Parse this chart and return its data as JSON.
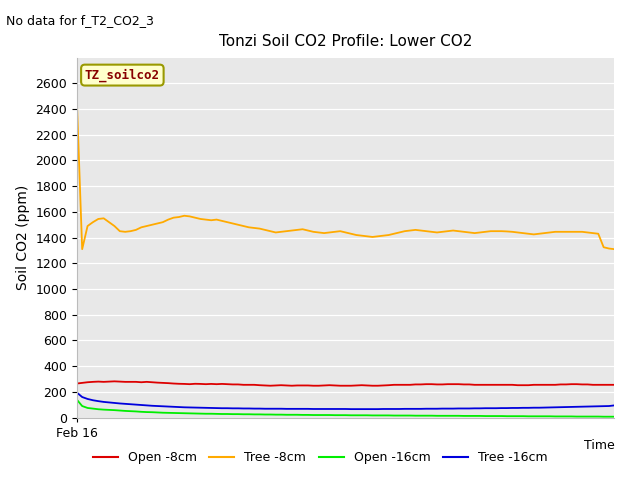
{
  "title": "Tonzi Soil CO2 Profile: Lower CO2",
  "no_data_text": "No data for f_T2_CO2_3",
  "xlabel": "Time",
  "ylabel": "Soil CO2 (ppm)",
  "ylim": [
    0,
    2800
  ],
  "yticks": [
    0,
    200,
    400,
    600,
    800,
    1000,
    1200,
    1400,
    1600,
    1800,
    2000,
    2200,
    2400,
    2600
  ],
  "x_start_label": "Feb 16",
  "legend_label": "TZ_soilco2",
  "legend_box_color": "#ffffcc",
  "legend_box_edge": "#999900",
  "background_color": "#e8e8e8",
  "series_order": [
    "open_8cm",
    "tree_8cm",
    "open_16cm",
    "tree_16cm"
  ],
  "series": {
    "open_8cm": {
      "label": "Open -8cm",
      "color": "#dd0000",
      "y": [
        265,
        270,
        275,
        278,
        280,
        278,
        280,
        282,
        280,
        278,
        278,
        278,
        275,
        278,
        275,
        272,
        270,
        268,
        265,
        263,
        262,
        260,
        263,
        262,
        260,
        262,
        260,
        262,
        260,
        258,
        258,
        255,
        255,
        255,
        252,
        250,
        248,
        250,
        252,
        250,
        248,
        250,
        250,
        250,
        248,
        248,
        250,
        252,
        250,
        248,
        248,
        248,
        250,
        252,
        250,
        248,
        248,
        250,
        252,
        255,
        255,
        255,
        255,
        258,
        258,
        260,
        260,
        258,
        258,
        260,
        260,
        260,
        258,
        258,
        255,
        255,
        255,
        255,
        255,
        255,
        255,
        255,
        252,
        252,
        252,
        255,
        255,
        255,
        255,
        255,
        258,
        258,
        260,
        260,
        258,
        258,
        255,
        255,
        255,
        255,
        255
      ]
    },
    "tree_8cm": {
      "label": "Tree -8cm",
      "color": "#ffaa00",
      "y": [
        2480,
        1310,
        1490,
        1520,
        1545,
        1550,
        1520,
        1490,
        1450,
        1445,
        1450,
        1460,
        1480,
        1490,
        1500,
        1510,
        1520,
        1540,
        1555,
        1560,
        1570,
        1565,
        1555,
        1545,
        1540,
        1535,
        1540,
        1530,
        1520,
        1510,
        1500,
        1490,
        1480,
        1475,
        1470,
        1460,
        1450,
        1440,
        1445,
        1450,
        1455,
        1460,
        1465,
        1455,
        1445,
        1440,
        1435,
        1440,
        1445,
        1450,
        1440,
        1430,
        1420,
        1415,
        1410,
        1405,
        1410,
        1415,
        1420,
        1430,
        1440,
        1450,
        1455,
        1460,
        1455,
        1450,
        1445,
        1440,
        1445,
        1450,
        1455,
        1450,
        1445,
        1440,
        1435,
        1440,
        1445,
        1450,
        1450,
        1450,
        1448,
        1445,
        1440,
        1435,
        1430,
        1425,
        1430,
        1435,
        1440,
        1445,
        1445,
        1445,
        1445,
        1445,
        1445,
        1440,
        1435,
        1430,
        1325,
        1315,
        1310
      ]
    },
    "open_16cm": {
      "label": "Open -16cm",
      "color": "#00ee00",
      "y": [
        140,
        90,
        75,
        70,
        65,
        62,
        60,
        58,
        55,
        52,
        50,
        48,
        45,
        43,
        42,
        40,
        38,
        37,
        36,
        35,
        34,
        33,
        32,
        31,
        30,
        30,
        29,
        28,
        28,
        27,
        27,
        26,
        26,
        25,
        25,
        24,
        24,
        23,
        23,
        22,
        22,
        22,
        21,
        21,
        20,
        20,
        20,
        20,
        19,
        19,
        19,
        18,
        18,
        18,
        18,
        17,
        17,
        17,
        17,
        16,
        16,
        16,
        16,
        15,
        15,
        15,
        15,
        14,
        14,
        14,
        14,
        14,
        13,
        13,
        13,
        13,
        12,
        12,
        12,
        12,
        11,
        11,
        11,
        11,
        10,
        10,
        10,
        10,
        10,
        9,
        9,
        9,
        9,
        8,
        8,
        8,
        8,
        8,
        7,
        7,
        7
      ]
    },
    "tree_16cm": {
      "label": "Tree -16cm",
      "color": "#0000dd",
      "y": [
        195,
        160,
        145,
        135,
        128,
        122,
        118,
        114,
        110,
        107,
        104,
        101,
        98,
        95,
        92,
        90,
        88,
        86,
        84,
        82,
        80,
        79,
        78,
        77,
        76,
        75,
        74,
        73,
        73,
        72,
        72,
        71,
        71,
        70,
        70,
        69,
        69,
        69,
        69,
        68,
        68,
        68,
        68,
        68,
        67,
        67,
        67,
        67,
        67,
        67,
        67,
        66,
        66,
        66,
        66,
        66,
        66,
        67,
        67,
        67,
        67,
        68,
        68,
        68,
        68,
        69,
        69,
        69,
        70,
        70,
        70,
        71,
        71,
        71,
        72,
        72,
        73,
        73,
        73,
        74,
        74,
        75,
        75,
        76,
        76,
        77,
        77,
        78,
        79,
        80,
        81,
        82,
        83,
        84,
        85,
        86,
        87,
        88,
        89,
        90,
        95
      ]
    }
  },
  "legend_lines": [
    {
      "label": "Open -8cm",
      "color": "#dd0000"
    },
    {
      "label": "Tree -8cm",
      "color": "#ffaa00"
    },
    {
      "label": "Open -16cm",
      "color": "#00ee00"
    },
    {
      "label": "Tree -16cm",
      "color": "#0000dd"
    }
  ]
}
